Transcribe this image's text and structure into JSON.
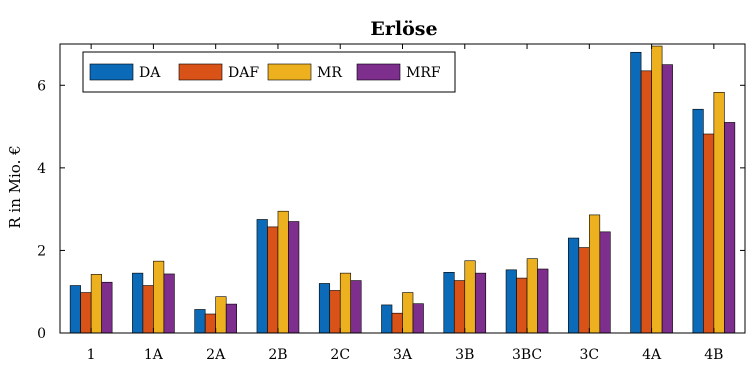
{
  "chart_data": {
    "type": "bar",
    "title": "Erlöse",
    "ylabel": "R in Mio. €",
    "xlabel": "",
    "ylim": [
      0,
      7
    ],
    "yticks": [
      0,
      2,
      4,
      6
    ],
    "categories": [
      "1",
      "1A",
      "2A",
      "2B",
      "2C",
      "3A",
      "3B",
      "3BC",
      "3C",
      "4A",
      "4B"
    ],
    "series": [
      {
        "name": "DA",
        "color": "#0b6bb8",
        "values": [
          1.15,
          1.45,
          0.57,
          2.75,
          1.2,
          0.68,
          1.47,
          1.53,
          2.3,
          6.8,
          5.42
        ]
      },
      {
        "name": "DAF",
        "color": "#d95319",
        "values": [
          0.98,
          1.15,
          0.46,
          2.57,
          1.03,
          0.48,
          1.27,
          1.33,
          2.07,
          6.35,
          4.82
        ]
      },
      {
        "name": "MR",
        "color": "#edb120",
        "values": [
          1.42,
          1.74,
          0.88,
          2.95,
          1.45,
          0.98,
          1.75,
          1.8,
          2.86,
          6.95,
          5.83
        ]
      },
      {
        "name": "MRF",
        "color": "#7e2f8e",
        "values": [
          1.23,
          1.43,
          0.7,
          2.7,
          1.27,
          0.71,
          1.45,
          1.55,
          2.45,
          6.5,
          5.1
        ]
      }
    ],
    "grid": false,
    "legend": "top-left"
  }
}
